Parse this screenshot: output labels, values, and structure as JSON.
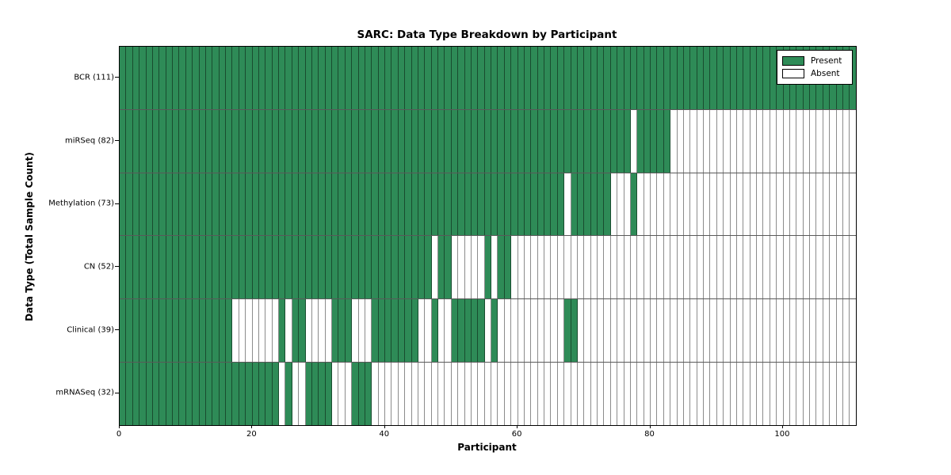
{
  "title": "SARC: Data Type Breakdown by Participant",
  "axes": {
    "x_label": "Participant",
    "y_label": "Data Type (Total Sample Count)"
  },
  "legend": {
    "present_label": "Present",
    "absent_label": "Absent"
  },
  "colors": {
    "present": "#2e8b57",
    "absent": "#ffffff",
    "cell_border": "rgba(0,0,0,0.45)",
    "axis": "#000000"
  },
  "chart_data": {
    "type": "heatmap",
    "title": "SARC: Data Type Breakdown by Participant",
    "xlabel": "Participant",
    "ylabel": "Data Type (Total Sample Count)",
    "n_participants": 111,
    "x_range": [
      0,
      111
    ],
    "x_ticks": [
      0,
      20,
      40,
      60,
      80,
      100
    ],
    "legend_entries": [
      "Present",
      "Absent"
    ],
    "legend_position": "upper right",
    "cell_states": {
      "present": 1,
      "absent": 0
    },
    "rows": [
      {
        "data_type": "BCR",
        "total": 111,
        "label": "BCR (111)",
        "present_mask": "111111111111111111111111111111111111111111111111111111111111111111111111111111111111111111111111111111111111111"
      },
      {
        "data_type": "miRSeq",
        "total": 82,
        "label": "miRSeq (82)",
        "present_mask": "111111111111111111111111111111111111111111111111111111111111111111111111111110111110000000000000000000000000000"
      },
      {
        "data_type": "Methylation",
        "total": 73,
        "label": "Methylation (73)",
        "present_mask": "111111111111111111111111111111111111111111111111111111111111111111101111110001000000000000000000000000000000000"
      },
      {
        "data_type": "CN",
        "total": 52,
        "label": "CN (52)",
        "present_mask": "111111111111111111111111111111111111111111111110110000010110000000000000000000000000000000000000000000000000000"
      },
      {
        "data_type": "Clinical",
        "total": 39,
        "label": "Clinical (39)",
        "present_mask": "111111111111111110000000101100001110001111111001001111101000000000011000000000000000000000000000000000000000000"
      },
      {
        "data_type": "mRNASeq",
        "total": 32,
        "label": "mRNASeq (32)",
        "present_mask": "111111111111111111111111010011110001110000000000000000000000000000000000000000000000000000000000000000000000000"
      }
    ]
  }
}
